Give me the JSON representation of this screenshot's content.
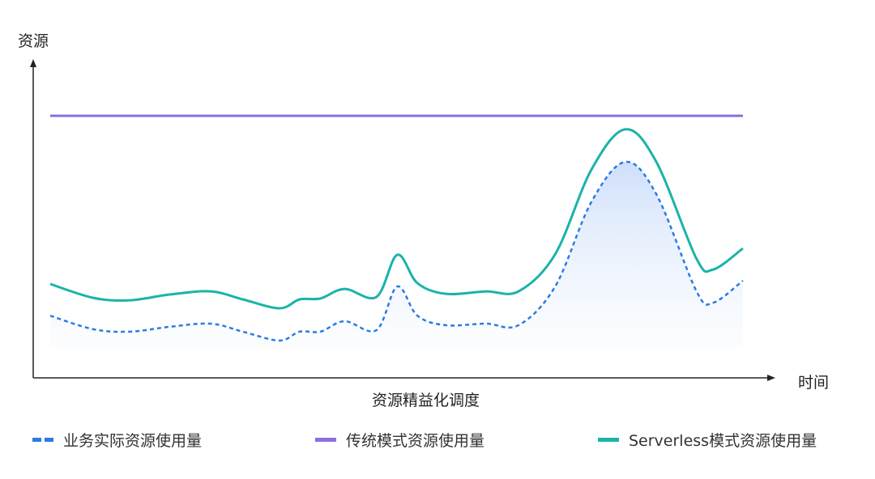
{
  "chart_data": {
    "type": "line",
    "title": "",
    "ylabel": "资源",
    "xlabel": "时间",
    "caption": "资源精益化调度",
    "xlim": [
      0,
      100
    ],
    "ylim": [
      0,
      100
    ],
    "grid": false,
    "legend_position": "bottom",
    "x": [
      0,
      6.2,
      11.5,
      17.3,
      23.2,
      27.8,
      33.1,
      36,
      39,
      42.5,
      47.1,
      50.1,
      53,
      57.1,
      62.9,
      67.6,
      72.9,
      78.1,
      83,
      87.5,
      93.3,
      95.7,
      100
    ],
    "series": [
      {
        "name": "业务实际资源使用量",
        "color": "#2b7be5",
        "style": "dashed",
        "fill": true,
        "values": [
          19.7,
          15.3,
          14.5,
          16.1,
          17.1,
          14.5,
          11.6,
          14.5,
          14.5,
          17.9,
          15,
          29.2,
          19.7,
          16.6,
          17.1,
          16.6,
          29.2,
          56.6,
          69.7,
          59.2,
          27.6,
          23.9,
          31.1
        ]
      },
      {
        "name": "传统模式资源使用量",
        "color": "#8a6fe0",
        "style": "solid",
        "values": [
          84.7,
          84.7,
          84.7,
          84.7,
          84.7,
          84.7,
          84.7,
          84.7,
          84.7,
          84.7,
          84.7,
          84.7,
          84.7,
          84.7,
          84.7,
          84.7,
          84.7,
          84.7,
          84.7,
          84.7,
          84.7,
          84.7,
          84.7
        ]
      },
      {
        "name": "Serverless模式资源使用量",
        "color": "#1ab3aa",
        "style": "solid",
        "values": [
          30,
          25.5,
          24.7,
          26.6,
          27.6,
          25,
          22.1,
          25,
          25.3,
          28.4,
          25.8,
          39.5,
          30.3,
          26.8,
          27.6,
          27.6,
          39.7,
          67.1,
          80.3,
          69.7,
          38.2,
          34.7,
          41.6
        ]
      }
    ]
  }
}
